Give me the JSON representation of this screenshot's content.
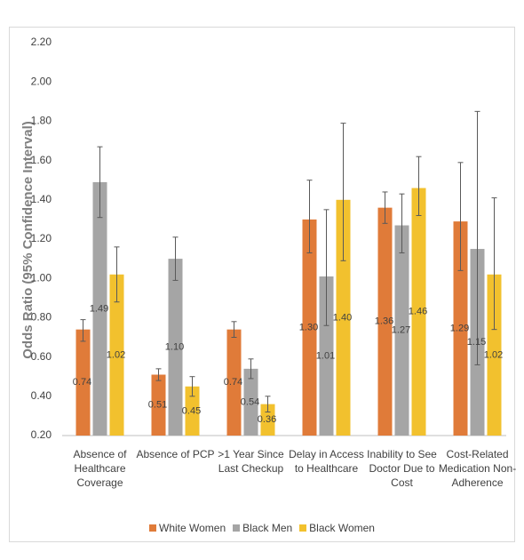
{
  "chart_data": {
    "type": "bar",
    "y_label": "Odds Ratio (95% Confidence Interval)",
    "categories": [
      "Absence of Healthcare Coverage",
      "Absence of PCP",
      ">1 Year Since Last Checkup",
      "Delay in Access to Healthcare",
      "Inability to See Doctor Due to Cost",
      "Cost-Related Medication Non-Adherence"
    ],
    "series": [
      {
        "name": "White Women",
        "color": "#e07b39",
        "values": [
          0.74,
          0.51,
          0.74,
          1.3,
          1.36,
          1.29
        ],
        "value_labels": [
          "0.74",
          "0.51",
          "0.74",
          "1.30",
          "1.36",
          "1.29"
        ],
        "ci_low": [
          0.68,
          0.48,
          0.7,
          1.13,
          1.28,
          1.04
        ],
        "ci_high": [
          0.79,
          0.54,
          0.78,
          1.5,
          1.44,
          1.59
        ]
      },
      {
        "name": "Black Men",
        "color": "#a5a5a5",
        "values": [
          1.49,
          1.1,
          0.54,
          1.01,
          1.27,
          1.15
        ],
        "value_labels": [
          "1.49",
          "1.10",
          "0.54",
          "1.01",
          "1.27",
          "1.15"
        ],
        "ci_low": [
          1.31,
          0.99,
          0.49,
          0.76,
          1.13,
          0.56
        ],
        "ci_high": [
          1.67,
          1.21,
          0.59,
          1.35,
          1.43,
          1.85
        ]
      },
      {
        "name": "Black Women",
        "color": "#f2c12e",
        "values": [
          1.02,
          0.45,
          0.36,
          1.4,
          1.46,
          1.02
        ],
        "value_labels": [
          "1.02",
          "0.45",
          "0.36",
          "1.40",
          "1.46",
          "1.02"
        ],
        "ci_low": [
          0.88,
          0.4,
          0.32,
          1.09,
          1.32,
          0.74
        ],
        "ci_high": [
          1.16,
          0.5,
          0.4,
          1.79,
          1.62,
          1.41
        ]
      }
    ],
    "ylim": [
      0.2,
      2.2
    ],
    "yticks": [
      {
        "value": 0.2,
        "label": "0.20"
      },
      {
        "value": 0.4,
        "label": "0.40"
      },
      {
        "value": 0.6,
        "label": "0.60"
      },
      {
        "value": 0.8,
        "label": "0.80"
      },
      {
        "value": 1.0,
        "label": "1.00"
      },
      {
        "value": 1.2,
        "label": "1.20"
      },
      {
        "value": 1.4,
        "label": "1.40"
      },
      {
        "value": 1.6,
        "label": "1.60"
      },
      {
        "value": 1.8,
        "label": "1.80"
      },
      {
        "value": 2.0,
        "label": "2.00"
      },
      {
        "value": 2.2,
        "label": "2.20"
      }
    ],
    "grid": false,
    "legend": "bottom"
  }
}
